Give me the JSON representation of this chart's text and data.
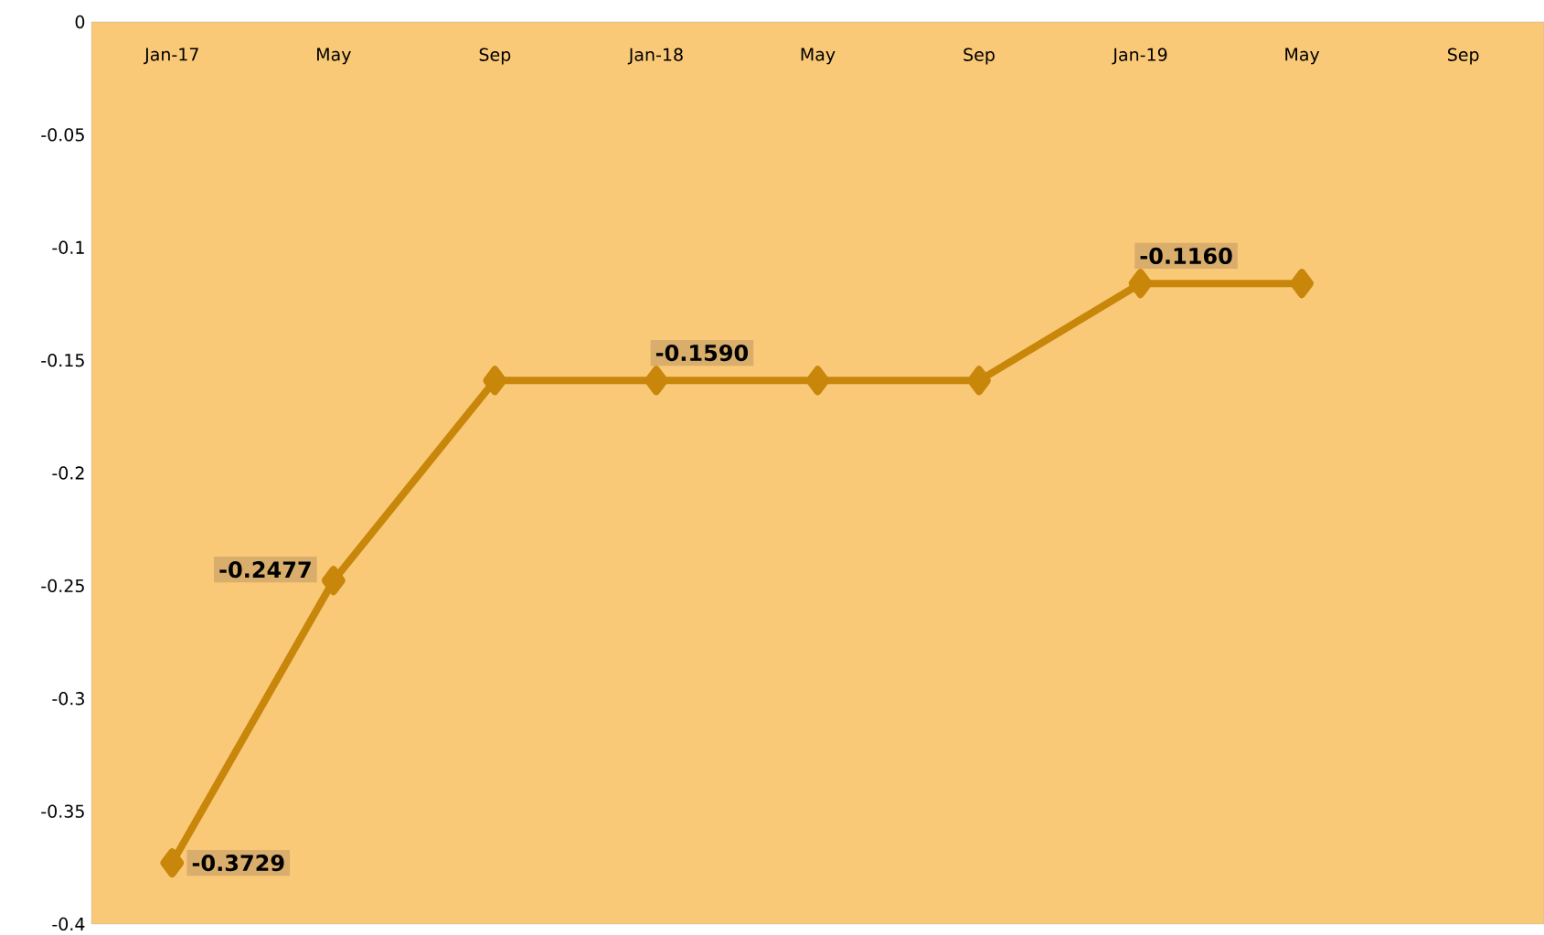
{
  "chart_data": {
    "type": "line",
    "categories": [
      "Jan-17",
      "May",
      "Sep",
      "Jan-18",
      "May",
      "Sep",
      "Jan-19",
      "May",
      "Sep"
    ],
    "series": [
      {
        "color": "#c8860a",
        "values": [
          -0.3729,
          -0.2477,
          -0.159,
          -0.159,
          -0.159,
          -0.159,
          -0.116,
          -0.116,
          null
        ],
        "value_labels": [
          "-0.3729",
          "-0.2477",
          null,
          "-0.1590",
          null,
          null,
          "-0.1160",
          null,
          null
        ]
      }
    ],
    "ylim": [
      -0.4,
      0
    ],
    "yticks": [
      -0.4,
      -0.35,
      -0.3,
      -0.25,
      -0.2,
      -0.15,
      -0.1,
      -0.05,
      0
    ],
    "marker": "diamond",
    "line_style": "solid",
    "grid": false
  }
}
